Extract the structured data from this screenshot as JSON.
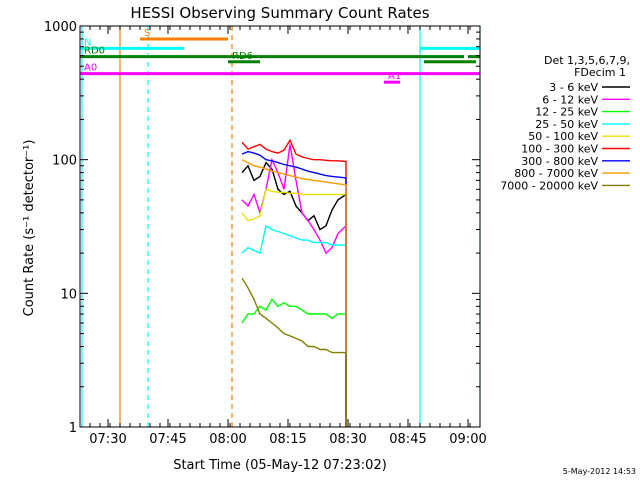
{
  "chart_data": {
    "type": "line",
    "title": "HESSI Observing Summary Count Rates",
    "xlabel": "Start Time (05-May-12 07:23:02)",
    "ylabel": "Count Rate (s⁻¹ detector⁻¹)",
    "y_scale": "log",
    "ylim": [
      1,
      1000
    ],
    "x_units": "minutes after 07:23:02",
    "xlim": [
      0,
      100
    ],
    "x_tick_labels": [
      "07:30",
      "07:45",
      "08:00",
      "08:15",
      "08:30",
      "08:45",
      "09:00"
    ],
    "x_tick_values": [
      7,
      22,
      37,
      52,
      67,
      82,
      97
    ],
    "y_tick_labels": [
      "1",
      "10",
      "100",
      "1000"
    ],
    "y_tick_values": [
      1,
      10,
      100,
      1000
    ],
    "legend_header": [
      "Det 1,3,5,6,7,9,",
      "FDecim 1"
    ],
    "legend_placement": "right",
    "series": [
      {
        "name": "3 - 6 keV",
        "color": "#000000",
        "x": [
          40.5,
          42,
          43.5,
          45,
          46.5,
          48,
          49.5,
          51,
          52.5,
          54,
          55.5,
          57,
          58.5,
          60,
          61.5,
          63,
          64.5,
          66.5
        ],
        "values": [
          80,
          90,
          70,
          75,
          95,
          85,
          60,
          55,
          58,
          45,
          40,
          35,
          38,
          30,
          32,
          42,
          50,
          55
        ]
      },
      {
        "name": "6 - 12 keV",
        "color": "#ff00ff",
        "x": [
          40.5,
          42,
          43.5,
          45,
          46.5,
          48,
          49.5,
          51,
          52.5,
          54,
          55.5,
          57,
          58.5,
          60,
          61.5,
          63,
          64.5,
          66.5
        ],
        "values": [
          50,
          45,
          55,
          40,
          60,
          100,
          80,
          60,
          130,
          70,
          40,
          35,
          30,
          25,
          20,
          22,
          28,
          32
        ]
      },
      {
        "name": "12 - 25 keV",
        "color": "#00ff00",
        "x": [
          40.5,
          42,
          43.5,
          45,
          46.5,
          48,
          49.5,
          51,
          52.5,
          54,
          55.5,
          57,
          58.5,
          60,
          61.5,
          63,
          64.5,
          66.5
        ],
        "values": [
          6,
          7,
          7,
          8,
          7.5,
          9,
          8,
          8.5,
          8,
          8,
          7.5,
          7,
          7,
          7,
          7,
          6.5,
          7,
          7
        ]
      },
      {
        "name": "25 - 50 keV",
        "color": "#00ffff",
        "x": [
          40.5,
          42,
          43.5,
          45,
          46.5,
          48,
          49.5,
          51,
          52.5,
          54,
          55.5,
          57,
          58.5,
          60,
          61.5,
          63,
          64.5,
          66.5
        ],
        "values": [
          20,
          22,
          21,
          20,
          32,
          30,
          29,
          28,
          27,
          26,
          25,
          25,
          24,
          24,
          24,
          23,
          23,
          23
        ]
      },
      {
        "name": "50 - 100 keV",
        "color": "#e8e000",
        "x": [
          40.5,
          42,
          43.5,
          45,
          46.5,
          48,
          49.5,
          51,
          52.5,
          54,
          55.5,
          57,
          58.5,
          60,
          61.5,
          63,
          64.5,
          66.5
        ],
        "values": [
          40,
          35,
          36,
          38,
          60,
          58,
          57,
          57,
          56,
          56,
          55,
          55,
          55,
          55,
          55,
          55,
          55,
          55
        ]
      },
      {
        "name": "100 - 300 keV",
        "color": "#ff0000",
        "x": [
          40.5,
          42,
          43.5,
          45,
          46.5,
          48,
          49.5,
          51,
          52.5,
          54,
          55.5,
          57,
          58.5,
          60,
          61.5,
          63,
          64.5,
          66.5
        ],
        "values": [
          135,
          120,
          125,
          130,
          120,
          115,
          112,
          118,
          140,
          110,
          105,
          102,
          100,
          100,
          99,
          98,
          98,
          97
        ]
      },
      {
        "name": "300 - 800 keV",
        "color": "#0000ff",
        "x": [
          40.5,
          42,
          43.5,
          45,
          46.5,
          48,
          49.5,
          51,
          52.5,
          54,
          55.5,
          57,
          58.5,
          60,
          61.5,
          63,
          64.5,
          66.5
        ],
        "values": [
          110,
          115,
          112,
          108,
          100,
          98,
          95,
          92,
          90,
          88,
          85,
          82,
          80,
          78,
          76,
          75,
          74,
          73
        ]
      },
      {
        "name": "800 - 7000 keV",
        "color": "#ff9900",
        "x": [
          40.5,
          42,
          43.5,
          45,
          46.5,
          48,
          49.5,
          51,
          52.5,
          54,
          55.5,
          57,
          58.5,
          60,
          61.5,
          63,
          64.5,
          66.5
        ],
        "values": [
          100,
          95,
          90,
          88,
          85,
          82,
          80,
          78,
          76,
          74,
          72,
          71,
          70,
          69,
          68,
          67,
          66,
          65
        ]
      },
      {
        "name": "7000 - 20000 keV",
        "color": "#808000",
        "x": [
          40.5,
          42,
          43.5,
          45,
          46.5,
          48,
          49.5,
          51,
          52.5,
          54,
          55.5,
          57,
          58.5,
          60,
          61.5,
          63,
          64.5,
          66.5
        ],
        "values": [
          13,
          11,
          9,
          7,
          6.5,
          6,
          5.5,
          5,
          4.8,
          4.6,
          4.4,
          4,
          4,
          3.8,
          3.8,
          3.6,
          3.6,
          3.6
        ]
      }
    ],
    "attenuator_bars": [
      {
        "label": "S",
        "color": "#ff7f00",
        "y": 800,
        "x_start": 15,
        "x_end": 37
      },
      {
        "label": "N",
        "color": "#00ffff",
        "y": 680,
        "x_start": 0,
        "x_end": 26
      },
      {
        "label": "",
        "color": "#00ffff",
        "y": 680,
        "x_start": 85,
        "x_end": 100
      },
      {
        "label": "RD0",
        "color": "#008000",
        "y": 590,
        "x_start": 0,
        "x_end": 96
      },
      {
        "label": "",
        "color": "#008000",
        "y": 590,
        "x_start": 97,
        "x_end": 100
      },
      {
        "label": "RD6",
        "color": "#008000",
        "y": 540,
        "x_start": 37,
        "x_end": 45
      },
      {
        "label": "",
        "color": "#008000",
        "y": 540,
        "x_start": 86,
        "x_end": 99
      },
      {
        "label": "A0",
        "color": "#ff00ff",
        "y": 440,
        "x_start": 0,
        "x_end": 100
      },
      {
        "label": "A1",
        "color": "#ff00ff",
        "y": 380,
        "x_start": 76,
        "x_end": 80
      }
    ],
    "vertical_markers": [
      {
        "x": 0.5,
        "color": "#00ffff",
        "style": "solid"
      },
      {
        "x": 10,
        "color": "#ff7f00",
        "style": "solid"
      },
      {
        "x": 17,
        "color": "#00ffff",
        "style": "dashed"
      },
      {
        "x": 38,
        "color": "#ff7f00",
        "style": "dashed"
      },
      {
        "x": 85,
        "color": "#00ffff",
        "style": "solid"
      },
      {
        "x": 100,
        "color": "#00ffff",
        "style": "dashed"
      }
    ],
    "timestamp": "5-May-2012 14:53"
  }
}
